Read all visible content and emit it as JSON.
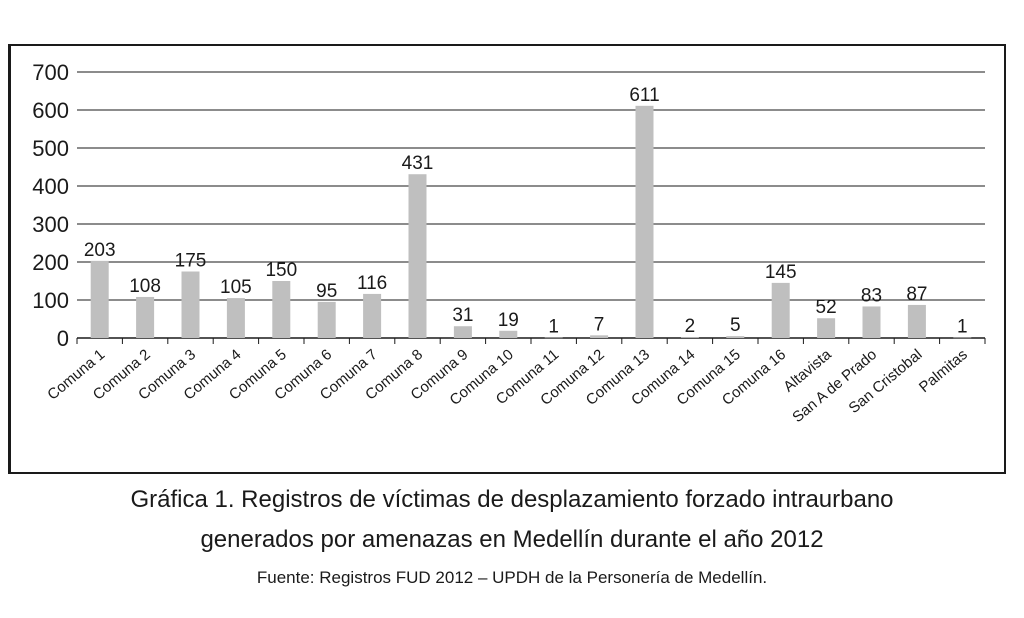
{
  "chart_data": {
    "type": "bar",
    "categories": [
      "Comuna 1",
      "Comuna 2",
      "Comuna 3",
      "Comuna 4",
      "Comuna 5",
      "Comuna 6",
      "Comuna 7",
      "Comuna 8",
      "Comuna 9",
      "Comuna 10",
      "Comuna 11",
      "Comuna 12",
      "Comuna 13",
      "Comuna 14",
      "Comuna 15",
      "Comuna 16",
      "Altavista",
      "San A de Prado",
      "San Cristobal",
      "Palmitas"
    ],
    "values": [
      203,
      108,
      175,
      105,
      150,
      95,
      116,
      431,
      31,
      19,
      1,
      7,
      611,
      2,
      5,
      145,
      52,
      83,
      87,
      1
    ],
    "ylim": [
      0,
      700
    ],
    "yticks": [
      0,
      100,
      200,
      300,
      400,
      500,
      600,
      700
    ],
    "grid": true,
    "legend": "none",
    "bar_color": "#bfbfbf",
    "title": "",
    "xlabel": "",
    "ylabel": ""
  },
  "caption": {
    "line1": "Gráfica 1. Registros de víctimas de desplazamiento forzado intraurbano",
    "line2": "generados por amenazas en Medellín durante el año 2012",
    "source": "Fuente: Registros FUD 2012 – UPDH de la Personería de Medellín."
  }
}
